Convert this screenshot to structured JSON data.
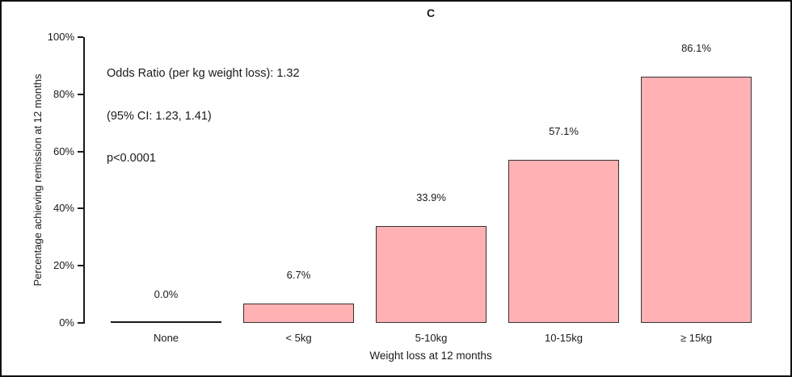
{
  "figure": {
    "panel_label": "C",
    "border_color": "#111111",
    "background_color": "#ffffff"
  },
  "chart_data": {
    "type": "bar",
    "title": "C",
    "categories": [
      "None",
      "< 5kg",
      "5-10kg",
      "10-15kg",
      "≥ 15kg"
    ],
    "values": [
      0.0,
      6.7,
      33.9,
      57.1,
      86.1
    ],
    "value_labels": [
      "0.0%",
      "6.7%",
      "33.9%",
      "57.1%",
      "86.1%"
    ],
    "xlabel": "Weight loss at 12 months",
    "ylabel": "Percentage achieving remission at 12 months",
    "ylim": [
      0,
      100
    ],
    "yticks": [
      0,
      20,
      40,
      60,
      80,
      100
    ],
    "ytick_labels": [
      "0%",
      "20%",
      "40%",
      "60%",
      "80%",
      "100%"
    ],
    "grid": false,
    "legend": null,
    "bar_color": "#FFB1B3",
    "bar_border_color": "#333333",
    "annotation_lines": [
      "Odds Ratio (per kg weight loss): 1.32",
      "(95% CI: 1.23, 1.41)",
      "p<0.0001"
    ]
  }
}
